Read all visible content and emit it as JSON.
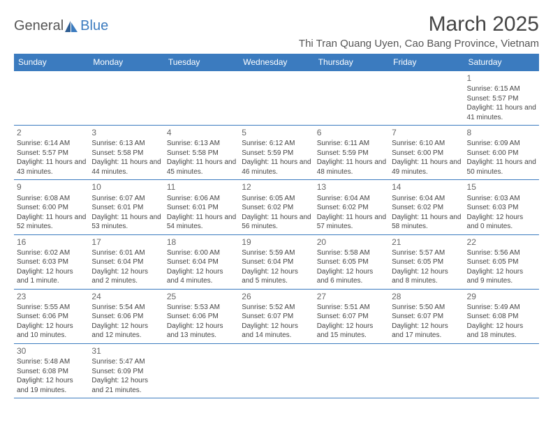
{
  "logo": {
    "text1": "General",
    "text2": "Blue"
  },
  "title": "March 2025",
  "location": "Thi Tran Quang Uyen, Cao Bang Province, Vietnam",
  "colors": {
    "header_bg": "#3b7bbf",
    "header_text": "#ffffff",
    "border": "#3b7bbf",
    "body_text": "#444444",
    "logo_gray": "#555555",
    "logo_blue": "#3b7bbf"
  },
  "day_labels": [
    "Sunday",
    "Monday",
    "Tuesday",
    "Wednesday",
    "Thursday",
    "Friday",
    "Saturday"
  ],
  "weeks": [
    [
      null,
      null,
      null,
      null,
      null,
      null,
      {
        "n": "1",
        "sr": "6:15 AM",
        "ss": "5:57 PM",
        "dl": "11 hours and 41 minutes."
      }
    ],
    [
      {
        "n": "2",
        "sr": "6:14 AM",
        "ss": "5:57 PM",
        "dl": "11 hours and 43 minutes."
      },
      {
        "n": "3",
        "sr": "6:13 AM",
        "ss": "5:58 PM",
        "dl": "11 hours and 44 minutes."
      },
      {
        "n": "4",
        "sr": "6:13 AM",
        "ss": "5:58 PM",
        "dl": "11 hours and 45 minutes."
      },
      {
        "n": "5",
        "sr": "6:12 AM",
        "ss": "5:59 PM",
        "dl": "11 hours and 46 minutes."
      },
      {
        "n": "6",
        "sr": "6:11 AM",
        "ss": "5:59 PM",
        "dl": "11 hours and 48 minutes."
      },
      {
        "n": "7",
        "sr": "6:10 AM",
        "ss": "6:00 PM",
        "dl": "11 hours and 49 minutes."
      },
      {
        "n": "8",
        "sr": "6:09 AM",
        "ss": "6:00 PM",
        "dl": "11 hours and 50 minutes."
      }
    ],
    [
      {
        "n": "9",
        "sr": "6:08 AM",
        "ss": "6:00 PM",
        "dl": "11 hours and 52 minutes."
      },
      {
        "n": "10",
        "sr": "6:07 AM",
        "ss": "6:01 PM",
        "dl": "11 hours and 53 minutes."
      },
      {
        "n": "11",
        "sr": "6:06 AM",
        "ss": "6:01 PM",
        "dl": "11 hours and 54 minutes."
      },
      {
        "n": "12",
        "sr": "6:05 AM",
        "ss": "6:02 PM",
        "dl": "11 hours and 56 minutes."
      },
      {
        "n": "13",
        "sr": "6:04 AM",
        "ss": "6:02 PM",
        "dl": "11 hours and 57 minutes."
      },
      {
        "n": "14",
        "sr": "6:04 AM",
        "ss": "6:02 PM",
        "dl": "11 hours and 58 minutes."
      },
      {
        "n": "15",
        "sr": "6:03 AM",
        "ss": "6:03 PM",
        "dl": "12 hours and 0 minutes."
      }
    ],
    [
      {
        "n": "16",
        "sr": "6:02 AM",
        "ss": "6:03 PM",
        "dl": "12 hours and 1 minute."
      },
      {
        "n": "17",
        "sr": "6:01 AM",
        "ss": "6:04 PM",
        "dl": "12 hours and 2 minutes."
      },
      {
        "n": "18",
        "sr": "6:00 AM",
        "ss": "6:04 PM",
        "dl": "12 hours and 4 minutes."
      },
      {
        "n": "19",
        "sr": "5:59 AM",
        "ss": "6:04 PM",
        "dl": "12 hours and 5 minutes."
      },
      {
        "n": "20",
        "sr": "5:58 AM",
        "ss": "6:05 PM",
        "dl": "12 hours and 6 minutes."
      },
      {
        "n": "21",
        "sr": "5:57 AM",
        "ss": "6:05 PM",
        "dl": "12 hours and 8 minutes."
      },
      {
        "n": "22",
        "sr": "5:56 AM",
        "ss": "6:05 PM",
        "dl": "12 hours and 9 minutes."
      }
    ],
    [
      {
        "n": "23",
        "sr": "5:55 AM",
        "ss": "6:06 PM",
        "dl": "12 hours and 10 minutes."
      },
      {
        "n": "24",
        "sr": "5:54 AM",
        "ss": "6:06 PM",
        "dl": "12 hours and 12 minutes."
      },
      {
        "n": "25",
        "sr": "5:53 AM",
        "ss": "6:06 PM",
        "dl": "12 hours and 13 minutes."
      },
      {
        "n": "26",
        "sr": "5:52 AM",
        "ss": "6:07 PM",
        "dl": "12 hours and 14 minutes."
      },
      {
        "n": "27",
        "sr": "5:51 AM",
        "ss": "6:07 PM",
        "dl": "12 hours and 15 minutes."
      },
      {
        "n": "28",
        "sr": "5:50 AM",
        "ss": "6:07 PM",
        "dl": "12 hours and 17 minutes."
      },
      {
        "n": "29",
        "sr": "5:49 AM",
        "ss": "6:08 PM",
        "dl": "12 hours and 18 minutes."
      }
    ],
    [
      {
        "n": "30",
        "sr": "5:48 AM",
        "ss": "6:08 PM",
        "dl": "12 hours and 19 minutes."
      },
      {
        "n": "31",
        "sr": "5:47 AM",
        "ss": "6:09 PM",
        "dl": "12 hours and 21 minutes."
      },
      null,
      null,
      null,
      null,
      null
    ]
  ],
  "labels": {
    "sunrise": "Sunrise:",
    "sunset": "Sunset:",
    "daylight": "Daylight:"
  }
}
